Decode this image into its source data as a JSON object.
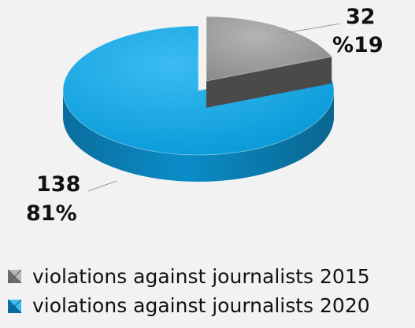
{
  "chart_data": {
    "type": "pie",
    "style": "3d",
    "categories": [
      "violations against journalists 2015",
      "violations against journalists 2020"
    ],
    "values": [
      32,
      138
    ],
    "value_labels": [
      "32",
      "138"
    ],
    "percent_labels": [
      "%19",
      "81%"
    ],
    "colors": [
      "#9a9a9a",
      "#0aa0e0"
    ],
    "side_colors": [
      "#6e6e6e",
      "#0a78b0"
    ],
    "legend_position": "bottom-left"
  },
  "legend": [
    {
      "label": "violations against journalists 2015",
      "color": "#9a9a9a"
    },
    {
      "label": "violations against journalists 2020",
      "color": "#0aa0e0"
    }
  ]
}
